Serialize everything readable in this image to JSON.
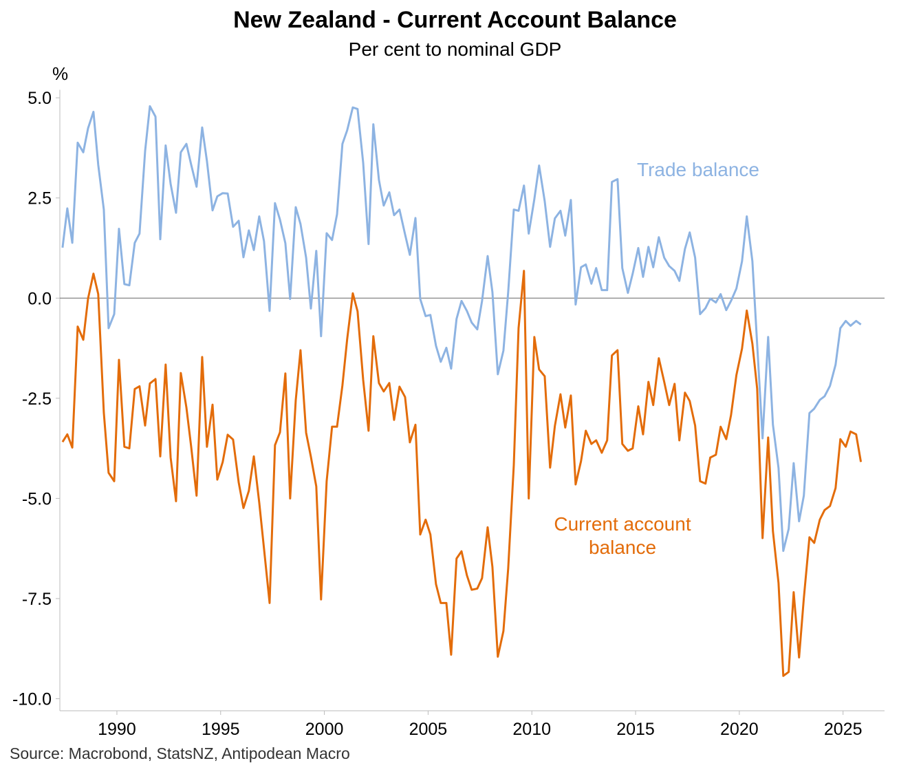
{
  "chart_data": {
    "type": "line",
    "title": "New Zealand - Current Account Balance",
    "subtitle": "Per cent to nominal GDP",
    "y_axis_label": "%",
    "source": "Source: Macrobond, StatsNZ, Antipodean Macro",
    "xlim": [
      1987.25,
      2027
    ],
    "xticks": [
      1990,
      1995,
      2000,
      2005,
      2010,
      2015,
      2020,
      2025
    ],
    "ylim": [
      -10.3,
      5.2
    ],
    "yticks": [
      {
        "value": 5,
        "label": "5.0"
      },
      2.5,
      {
        "value": 0,
        "label": "0.0"
      },
      -2.5,
      {
        "value": -5,
        "label": "-5.0"
      },
      -7.5,
      {
        "value": -10,
        "label": "-10.0"
      }
    ],
    "x": [
      1987.38,
      1987.61,
      1987.85,
      1988.11,
      1988.38,
      1988.61,
      1988.87,
      1989.1,
      1989.37,
      1989.6,
      1989.87,
      1990.1,
      1990.36,
      1990.6,
      1990.86,
      1991.09,
      1991.36,
      1991.59,
      1991.86,
      1992.09,
      1992.35,
      1992.59,
      1992.85,
      1993.08,
      1993.35,
      1993.58,
      1993.84,
      1994.11,
      1994.34,
      1994.61,
      1994.84,
      1995.1,
      1995.34,
      1995.6,
      1995.87,
      1996.1,
      1996.36,
      1996.6,
      1996.86,
      1997.09,
      1997.36,
      1997.62,
      1997.86,
      1998.12,
      1998.35,
      1998.62,
      1998.85,
      1999.12,
      1999.35,
      1999.61,
      1999.84,
      2000.11,
      2000.37,
      2000.61,
      2000.87,
      2001.1,
      2001.37,
      2001.6,
      2001.87,
      2002.13,
      2002.36,
      2002.63,
      2002.86,
      2003.13,
      2003.36,
      2003.62,
      2003.89,
      2004.12,
      2004.39,
      2004.62,
      2004.88,
      2005.11,
      2005.38,
      2005.61,
      2005.88,
      2006.11,
      2006.37,
      2006.61,
      2006.87,
      2007.1,
      2007.37,
      2007.6,
      2007.87,
      2008.1,
      2008.36,
      2008.63,
      2008.86,
      2009.13,
      2009.36,
      2009.62,
      2009.85,
      2010.12,
      2010.35,
      2010.62,
      2010.88,
      2011.11,
      2011.38,
      2011.61,
      2011.88,
      2012.11,
      2012.37,
      2012.6,
      2012.87,
      2013.1,
      2013.37,
      2013.63,
      2013.86,
      2014.13,
      2014.36,
      2014.63,
      2014.86,
      2015.13,
      2015.36,
      2015.62,
      2015.85,
      2016.12,
      2016.38,
      2016.62,
      2016.88,
      2017.11,
      2017.38,
      2017.61,
      2017.87,
      2018.11,
      2018.37,
      2018.6,
      2018.87,
      2019.1,
      2019.37,
      2019.6,
      2019.86,
      2020.13,
      2020.36,
      2020.63,
      2020.86,
      2021.12,
      2021.39,
      2021.62,
      2021.89,
      2022.12,
      2022.38,
      2022.62,
      2022.88,
      2023.11,
      2023.38,
      2023.61,
      2023.88,
      2024.11,
      2024.37,
      2024.64,
      2024.87,
      2025.13,
      2025.36,
      2025.63,
      2025.86
    ],
    "series": [
      {
        "name": "Trade balance",
        "color": "#8db3e2",
        "values": [
          1.26,
          2.24,
          1.38,
          3.88,
          3.64,
          4.24,
          4.65,
          3.33,
          2.21,
          -0.75,
          -0.4,
          1.73,
          0.35,
          0.32,
          1.38,
          1.61,
          3.67,
          4.79,
          4.53,
          1.47,
          3.81,
          2.85,
          2.13,
          3.64,
          3.85,
          3.33,
          2.78,
          4.26,
          3.42,
          2.19,
          2.54,
          2.62,
          2.61,
          1.78,
          1.93,
          1.02,
          1.69,
          1.2,
          2.04,
          1.42,
          -0.32,
          2.37,
          1.96,
          1.37,
          -0.02,
          2.27,
          1.85,
          1.01,
          -0.26,
          1.18,
          -0.95,
          1.62,
          1.45,
          2.09,
          3.85,
          4.19,
          4.76,
          4.72,
          3.38,
          1.35,
          4.34,
          2.95,
          2.31,
          2.64,
          2.07,
          2.21,
          1.59,
          1.08,
          2.0,
          -0.02,
          -0.45,
          -0.42,
          -1.19,
          -1.59,
          -1.24,
          -1.76,
          -0.52,
          -0.07,
          -0.32,
          -0.61,
          -0.78,
          -0.07,
          1.05,
          0.15,
          -1.9,
          -1.31,
          0.15,
          2.21,
          2.18,
          2.81,
          1.61,
          2.47,
          3.31,
          2.42,
          1.28,
          1.99,
          2.18,
          1.56,
          2.45,
          -0.16,
          0.77,
          0.84,
          0.36,
          0.75,
          0.2,
          0.2,
          2.9,
          2.97,
          0.75,
          0.13,
          0.61,
          1.25,
          0.53,
          1.28,
          0.77,
          1.52,
          1.01,
          0.8,
          0.68,
          0.43,
          1.23,
          1.64,
          1.01,
          -0.4,
          -0.25,
          -0.01,
          -0.11,
          0.1,
          -0.3,
          -0.07,
          0.24,
          0.92,
          2.04,
          0.92,
          -1.15,
          -3.5,
          -0.97,
          -3.16,
          -4.24,
          -6.31,
          -5.76,
          -4.12,
          -5.57,
          -4.93,
          -2.87,
          -2.76,
          -2.54,
          -2.45,
          -2.19,
          -1.66,
          -0.75,
          -0.57,
          -0.69,
          -0.57,
          -0.66
        ]
      },
      {
        "name": "Current account balance",
        "color": "#e36c0a",
        "values": [
          -3.59,
          -3.4,
          -3.73,
          -0.71,
          -1.04,
          -0.01,
          0.61,
          0.1,
          -2.86,
          -4.36,
          -4.57,
          -1.54,
          -3.71,
          -3.75,
          -2.27,
          -2.2,
          -3.18,
          -2.13,
          -2.02,
          -3.95,
          -1.66,
          -3.98,
          -5.07,
          -1.87,
          -2.73,
          -3.71,
          -4.93,
          -1.47,
          -3.71,
          -2.66,
          -4.53,
          -4.09,
          -3.41,
          -3.53,
          -4.6,
          -5.24,
          -4.81,
          -3.95,
          -5.1,
          -6.25,
          -7.61,
          -3.67,
          -3.35,
          -1.88,
          -5.0,
          -2.55,
          -1.3,
          -3.36,
          -3.96,
          -4.7,
          -7.52,
          -4.57,
          -3.21,
          -3.21,
          -2.18,
          -1.02,
          0.12,
          -0.33,
          -2.04,
          -3.31,
          -0.95,
          -2.12,
          -2.33,
          -2.12,
          -3.04,
          -2.21,
          -2.47,
          -3.6,
          -3.16,
          -5.9,
          -5.53,
          -5.9,
          -7.14,
          -7.61,
          -7.61,
          -8.9,
          -6.5,
          -6.32,
          -6.92,
          -7.28,
          -7.25,
          -6.99,
          -5.72,
          -6.71,
          -8.95,
          -8.31,
          -6.75,
          -4.17,
          -0.75,
          0.68,
          -5.0,
          -0.97,
          -1.78,
          -1.95,
          -4.23,
          -3.19,
          -2.4,
          -3.23,
          -2.43,
          -4.65,
          -4.07,
          -3.31,
          -3.64,
          -3.55,
          -3.86,
          -3.55,
          -1.43,
          -1.3,
          -3.64,
          -3.81,
          -3.75,
          -2.7,
          -3.4,
          -2.09,
          -2.67,
          -1.5,
          -2.09,
          -2.67,
          -2.14,
          -3.55,
          -2.36,
          -2.57,
          -3.18,
          -4.57,
          -4.63,
          -3.98,
          -3.91,
          -3.21,
          -3.52,
          -2.92,
          -1.92,
          -1.26,
          -0.31,
          -1.14,
          -2.26,
          -5.99,
          -3.48,
          -5.82,
          -7.11,
          -9.43,
          -9.33,
          -7.34,
          -8.97,
          -7.49,
          -5.97,
          -6.11,
          -5.53,
          -5.29,
          -5.19,
          -4.74,
          -3.52,
          -3.71,
          -3.33,
          -3.4,
          -4.09
        ]
      }
    ]
  }
}
